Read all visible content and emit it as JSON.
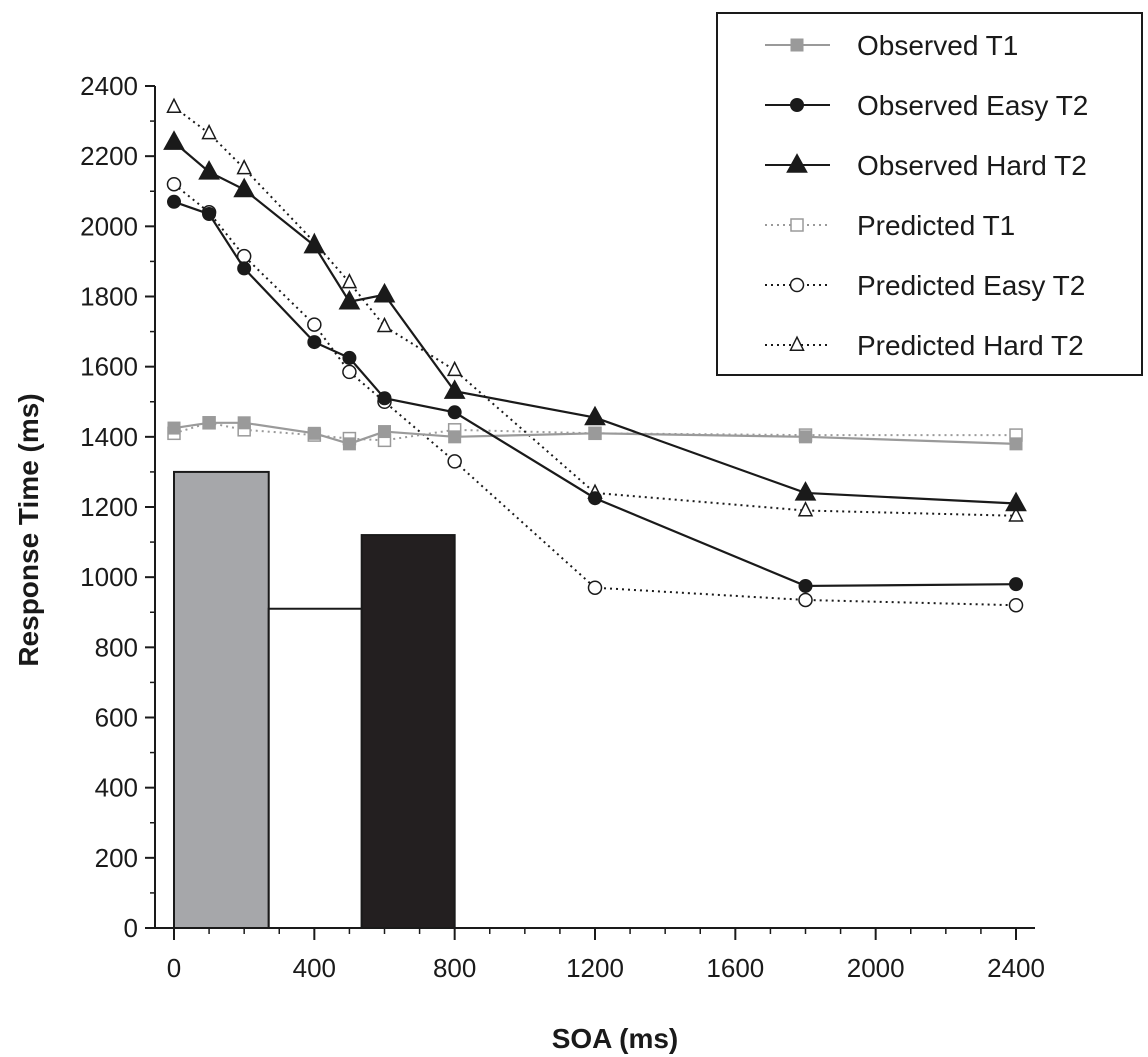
{
  "chart_data": {
    "type": "line",
    "xlabel": "SOA (ms)",
    "ylabel": "Response Time (ms)",
    "xlim": [
      0,
      2400
    ],
    "ylim": [
      0,
      2400
    ],
    "x_ticks": [
      "0",
      "400",
      "800",
      "1200",
      "1600",
      "2000",
      "2400"
    ],
    "y_ticks": [
      "0",
      "200",
      "400",
      "600",
      "800",
      "1000",
      "1200",
      "1400",
      "1600",
      "1800",
      "2000",
      "2200",
      "2400"
    ],
    "grid": false,
    "legend_position": "top-right",
    "series": [
      {
        "name": "Observed T1",
        "style": "solid",
        "marker": "square",
        "filled": true,
        "color": "#9a9a9a",
        "x": [
          0,
          100,
          200,
          400,
          500,
          600,
          800,
          1200,
          1800,
          2400
        ],
        "values": [
          1425,
          1440,
          1440,
          1410,
          1380,
          1415,
          1400,
          1410,
          1400,
          1380
        ]
      },
      {
        "name": "Observed Easy T2",
        "style": "solid",
        "marker": "circle",
        "filled": true,
        "color": "#1a1a1a",
        "x": [
          0,
          100,
          200,
          400,
          500,
          600,
          800,
          1200,
          1800,
          2400
        ],
        "values": [
          2070,
          2035,
          1880,
          1670,
          1625,
          1510,
          1470,
          1225,
          975,
          980
        ]
      },
      {
        "name": "Observed Hard T2",
        "style": "solid",
        "marker": "triangle",
        "filled": true,
        "color": "#1a1a1a",
        "x": [
          0,
          100,
          200,
          400,
          500,
          600,
          800,
          1200,
          1800,
          2400
        ],
        "values": [
          2240,
          2155,
          2105,
          1945,
          1785,
          1805,
          1530,
          1455,
          1240,
          1210
        ]
      },
      {
        "name": "Predicted T1",
        "style": "dotted",
        "marker": "square",
        "filled": false,
        "color": "#9a9a9a",
        "x": [
          0,
          100,
          200,
          400,
          500,
          600,
          800,
          1200,
          1800,
          2400
        ],
        "values": [
          1410,
          1440,
          1420,
          1405,
          1395,
          1390,
          1420,
          1410,
          1405,
          1405
        ]
      },
      {
        "name": "Predicted Easy T2",
        "style": "dotted",
        "marker": "circle",
        "filled": false,
        "color": "#1a1a1a",
        "x": [
          0,
          100,
          200,
          400,
          500,
          600,
          800,
          1200,
          1800,
          2400
        ],
        "values": [
          2120,
          2040,
          1915,
          1720,
          1585,
          1500,
          1330,
          970,
          935,
          920
        ]
      },
      {
        "name": "Predicted Hard T2",
        "style": "dotted",
        "marker": "triangle",
        "filled": false,
        "color": "#1a1a1a",
        "x": [
          0,
          100,
          200,
          400,
          500,
          600,
          800,
          1200,
          1800,
          2400
        ],
        "values": [
          2340,
          2265,
          2165,
          1955,
          1840,
          1715,
          1590,
          1240,
          1190,
          1175
        ]
      }
    ],
    "bars": [
      {
        "x_start": 0,
        "x_end": 270,
        "value": 1300,
        "color": "#a6a7aa"
      },
      {
        "x_start": 270,
        "x_end": 535,
        "value": 910,
        "color": "#ffffff"
      },
      {
        "x_start": 535,
        "x_end": 800,
        "value": 1120,
        "color": "#231f20"
      }
    ]
  }
}
